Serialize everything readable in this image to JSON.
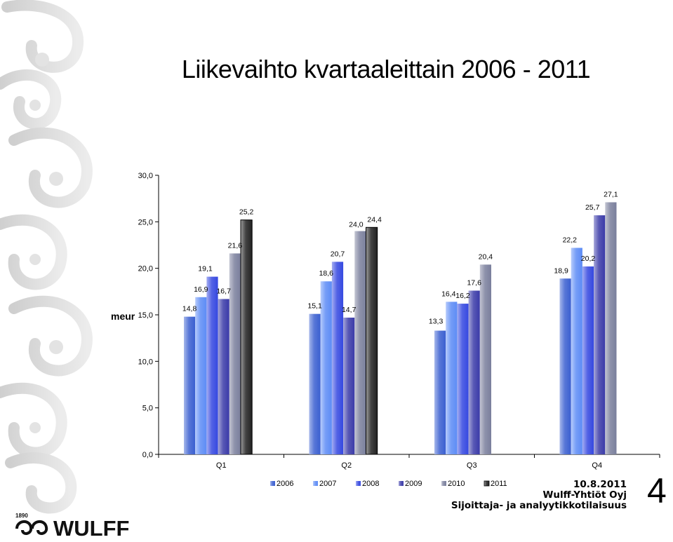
{
  "title": "Liikevaihto kvartaaleittain 2006 - 2011",
  "chart_data": {
    "type": "bar",
    "categories": [
      "Q1",
      "Q2",
      "Q3",
      "Q4"
    ],
    "ylabel": "meur",
    "ylim": [
      0,
      30
    ],
    "yticks": [
      "0,0",
      "5,0",
      "10,0",
      "15,0",
      "20,0",
      "25,0",
      "30,0"
    ],
    "legend_position": "bottom",
    "series": [
      {
        "name": "2006",
        "values": [
          14.8,
          15.1,
          13.3,
          18.9
        ],
        "labels": [
          "14,8",
          "15,1",
          "13,3",
          "18,9"
        ],
        "color": "#3a5fd0"
      },
      {
        "name": "2007",
        "values": [
          16.9,
          18.6,
          16.4,
          22.2
        ],
        "labels": [
          "16,9",
          "18,6",
          "16,4",
          "22,2"
        ],
        "color": "#5d8cf5"
      },
      {
        "name": "2008",
        "values": [
          19.1,
          20.7,
          16.2,
          20.2
        ],
        "labels": [
          "19,1",
          "20,7",
          "16,2",
          "20,2"
        ],
        "color": "#3548e0"
      },
      {
        "name": "2009",
        "values": [
          16.7,
          14.7,
          17.6,
          25.7
        ],
        "labels": [
          "16,7",
          "14,7",
          "17,6",
          "25,7"
        ],
        "color": "#3a3aa8"
      },
      {
        "name": "2010",
        "values": [
          21.6,
          24.0,
          20.4,
          27.1
        ],
        "labels": [
          "21,6",
          "24,0",
          "20,4",
          "27,1"
        ],
        "color": "#7a7f9c"
      },
      {
        "name": "2011",
        "values": [
          25.2,
          24.4,
          null,
          null
        ],
        "labels": [
          "25,2",
          "24,4",
          "",
          ""
        ],
        "color": "#222222"
      }
    ]
  },
  "footer": {
    "date": "10.8.2011",
    "company": "Wulff-Yhtiöt Oyj",
    "event": "Sijoittaja- ja analyytikkotilaisuus"
  },
  "page_number": "4",
  "logo": {
    "year": "1890",
    "name": "WULFF"
  },
  "colors": {
    "decoration": "#d7d7d7",
    "axis": "#000000"
  }
}
